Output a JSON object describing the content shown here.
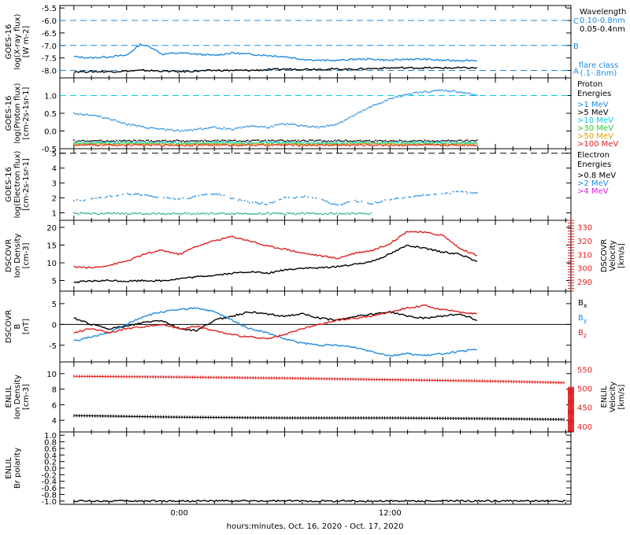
{
  "chart_data": [
    {
      "type": "line",
      "ylabel_lines": [
        "GOES-16",
        "log(X-ray flux)",
        "[W m-2]"
      ],
      "ylim": [
        -8.3,
        -5.4
      ],
      "yticks": [
        "-5.5",
        "-6.0",
        "-6.5",
        "-7.0",
        "-7.5",
        "-8.0"
      ],
      "ytick_values": [
        -5.5,
        -6.0,
        -6.5,
        -7.0,
        -7.5,
        -8.0
      ],
      "legend_title": "Wavelength",
      "legend": [
        {
          "label": "0.10-0.8nm",
          "color": "#1f8ae0"
        },
        {
          "label": "0.05-0.4nm",
          "color": "#000000"
        }
      ],
      "flare_classes": [
        {
          "label": "C",
          "level": -6.0
        },
        {
          "label": "B",
          "level": -7.0
        },
        {
          "label": "A",
          "level": -8.0
        }
      ],
      "flare_caption": [
        "flare class",
        "(.1-.8nm)"
      ],
      "series": [
        {
          "color": "#1f8ae0",
          "x": [
            -6,
            -5,
            -4,
            -3,
            -2.2,
            -1.5,
            -1,
            0,
            1,
            2,
            3,
            4,
            5,
            6,
            7,
            8,
            9,
            10,
            11,
            12,
            13,
            14,
            15,
            16,
            17
          ],
          "y": [
            -7.45,
            -7.5,
            -7.45,
            -7.4,
            -6.95,
            -7.1,
            -7.35,
            -7.3,
            -7.35,
            -7.4,
            -7.3,
            -7.35,
            -7.4,
            -7.45,
            -7.55,
            -7.6,
            -7.6,
            -7.55,
            -7.55,
            -7.6,
            -7.55,
            -7.55,
            -7.6,
            -7.6,
            -7.6
          ]
        },
        {
          "color": "#000000",
          "x": [
            -6,
            -4,
            -2,
            0,
            2,
            4,
            6,
            8,
            10,
            12,
            14,
            17
          ],
          "y": [
            -8.05,
            -8.05,
            -8.0,
            -8.05,
            -8.0,
            -8.0,
            -7.95,
            -7.95,
            -7.95,
            -7.9,
            -7.9,
            -7.9
          ]
        }
      ]
    },
    {
      "type": "scatter",
      "ylabel_lines": [
        "GOES-16",
        "log(Proton flux)",
        "[cm-2s-1sr-1]"
      ],
      "ylim": [
        -0.5,
        1.5
      ],
      "yticks": [
        "1.0",
        "0.5",
        "0.0",
        "-0.5"
      ],
      "ytick_values": [
        1.0,
        0.5,
        0.0,
        -0.5
      ],
      "threshold": 1.0,
      "legend_title_lines": [
        "Proton",
        "Energies"
      ],
      "legend": [
        {
          "label": ">1 MeV",
          "color": "#1f8ae0"
        },
        {
          "label": ">5 MeV",
          "color": "#000000"
        },
        {
          "label": ">10 MeV",
          "color": "#00d0e0"
        },
        {
          "label": ">30 MeV",
          "color": "#33cc33"
        },
        {
          "label": ">50 MeV",
          "color": "#e0a000"
        },
        {
          "label": ">100 MeV",
          "color": "#e02020"
        }
      ],
      "series": [
        {
          "color": "#1f8ae0",
          "x": [
            -6,
            -5,
            -4,
            -3,
            -2,
            -1,
            0,
            1,
            2,
            3,
            4,
            5,
            6,
            7,
            8,
            9,
            10,
            11,
            12,
            13,
            14,
            15,
            16,
            17
          ],
          "y": [
            0.5,
            0.45,
            0.35,
            0.2,
            0.1,
            0.05,
            0.0,
            0.05,
            0.1,
            0.05,
            0.15,
            0.1,
            0.2,
            0.15,
            0.1,
            0.2,
            0.45,
            0.7,
            0.9,
            1.05,
            1.1,
            1.15,
            1.1,
            1.0
          ]
        },
        {
          "color": "#000000",
          "x": [
            -6,
            17
          ],
          "y": [
            -0.28,
            -0.28
          ]
        },
        {
          "color": "#00d0e0",
          "x": [
            -6,
            17
          ],
          "y": [
            -0.33,
            -0.33
          ]
        },
        {
          "color": "#33cc33",
          "x": [
            -6,
            17
          ],
          "y": [
            -0.36,
            -0.36
          ]
        },
        {
          "color": "#e0a000",
          "x": [
            -6,
            17
          ],
          "y": [
            -0.38,
            -0.38
          ]
        },
        {
          "color": "#e02020",
          "x": [
            -6,
            17
          ],
          "y": [
            -0.4,
            -0.4
          ]
        }
      ]
    },
    {
      "type": "scatter",
      "ylabel_lines": [
        "GOES-16",
        "log(Electron flux)",
        "[cm-2s-1sr-1]"
      ],
      "ylim": [
        0.5,
        5.3
      ],
      "yticks": [
        "5",
        "4",
        "3",
        "2",
        "1"
      ],
      "ytick_values": [
        5,
        4,
        3,
        2,
        1
      ],
      "threshold": 5.0,
      "legend_title_lines": [
        "Electron",
        "Energies"
      ],
      "legend": [
        {
          "label": ">0.8 MeV",
          "color": "#000000"
        },
        {
          "label": ">2 MeV",
          "color": "#1f8ae0"
        },
        {
          "label": ">4 MeV",
          "color": "#e020e0"
        }
      ],
      "series": [
        {
          "color": "#1f8ae0",
          "x": [
            -6,
            -5,
            -4,
            -3,
            -2,
            -1,
            0,
            1,
            2,
            3,
            4,
            5,
            6,
            7,
            8,
            9,
            10,
            11,
            12,
            13,
            14,
            15,
            16,
            17
          ],
          "y": [
            1.8,
            1.9,
            2.1,
            2.3,
            2.2,
            2.0,
            1.9,
            2.1,
            2.3,
            2.0,
            1.7,
            1.6,
            2.0,
            2.1,
            1.9,
            1.5,
            1.8,
            1.6,
            1.9,
            2.0,
            2.2,
            2.3,
            2.4,
            2.3
          ]
        },
        {
          "color": "#1faa88",
          "x": [
            -6,
            11
          ],
          "y": [
            0.95,
            0.95
          ]
        }
      ]
    },
    {
      "type": "line",
      "ylabel_lines": [
        "DSCOVR",
        "Ion Density",
        "[cm-3]"
      ],
      "ylim": [
        2,
        22
      ],
      "yticks": [
        "20",
        "15",
        "10",
        "5"
      ],
      "ytick_values": [
        20,
        15,
        10,
        5
      ],
      "y2label_lines": [
        "DSCOVR",
        "Velocity",
        "[km/s]"
      ],
      "y2lim": [
        283,
        335
      ],
      "y2ticks": [
        "330",
        "320",
        "310",
        "300",
        "290"
      ],
      "y2tick_values": [
        330,
        320,
        310,
        300,
        290
      ],
      "series": [
        {
          "color": "#000000",
          "axis": "left",
          "x": [
            -6,
            -5,
            -4,
            -3,
            -2,
            -1,
            0,
            1,
            2,
            3,
            4,
            5,
            6,
            7,
            8,
            9,
            10,
            11,
            12,
            13,
            14,
            15,
            16,
            17
          ],
          "y": [
            4.5,
            4.8,
            5.0,
            4.8,
            5.0,
            4.9,
            5.5,
            6.0,
            6.5,
            7.0,
            7.5,
            7.0,
            8.0,
            8.5,
            8.5,
            9.0,
            9.5,
            10.5,
            12.5,
            15.0,
            14.0,
            13.0,
            12.5,
            10.0
          ]
        },
        {
          "color": "#e02020",
          "axis": "right",
          "x": [
            -6,
            -5,
            -4,
            -3,
            -2,
            -1,
            0,
            1,
            2,
            3,
            4,
            5,
            6,
            7,
            8,
            9,
            10,
            11,
            12,
            13,
            14,
            15,
            16,
            17
          ],
          "y": [
            301,
            300,
            302,
            305,
            310,
            313,
            310,
            316,
            320,
            323,
            320,
            316,
            314,
            311,
            309,
            307,
            311,
            313,
            318,
            327,
            326,
            324,
            314,
            309
          ]
        }
      ]
    },
    {
      "type": "line",
      "ylabel_lines": [
        "DSCOVR",
        "B",
        "[nT]"
      ],
      "ylim": [
        -9,
        8
      ],
      "yticks": [
        "5",
        "0",
        "-5"
      ],
      "ytick_values": [
        5,
        0,
        -5
      ],
      "zero_line": 0,
      "legend": [
        {
          "label": "Bx",
          "color": "#000000"
        },
        {
          "label": "By",
          "color": "#1f8ae0"
        },
        {
          "label": "Bz",
          "color": "#e02020"
        }
      ],
      "series": [
        {
          "color": "#000000",
          "x": [
            -6,
            -5,
            -4,
            -3,
            -2,
            -1,
            0,
            1,
            2,
            3,
            4,
            5,
            6,
            7,
            8,
            9,
            10,
            11,
            12,
            13,
            14,
            15,
            16,
            17
          ],
          "y": [
            1.5,
            0.0,
            -1.0,
            -0.5,
            0.5,
            1.0,
            -1.0,
            -1.5,
            1.0,
            2.0,
            3.0,
            2.5,
            2.0,
            2.5,
            1.5,
            1.0,
            2.0,
            2.5,
            3.0,
            2.0,
            1.5,
            2.0,
            2.5,
            1.0
          ]
        },
        {
          "color": "#1f8ae0",
          "x": [
            -6,
            -5,
            -4,
            -3,
            -2,
            -1,
            0,
            1,
            2,
            3,
            4,
            5,
            6,
            7,
            8,
            9,
            10,
            11,
            12,
            13,
            14,
            15,
            16,
            17
          ],
          "y": [
            -4.0,
            -3.0,
            -2.0,
            0.0,
            2.0,
            3.0,
            3.5,
            4.0,
            3.0,
            1.0,
            -1.0,
            -2.0,
            -3.5,
            -4.5,
            -5.0,
            -5.0,
            -5.5,
            -6.5,
            -7.5,
            -7.0,
            -7.5,
            -7.0,
            -6.5,
            -6.0
          ]
        },
        {
          "color": "#e02020",
          "x": [
            -6,
            -5,
            -4,
            -3,
            -2,
            -1,
            0,
            1,
            2,
            3,
            4,
            5,
            6,
            7,
            8,
            9,
            10,
            11,
            12,
            13,
            14,
            15,
            16,
            17
          ],
          "y": [
            -2.0,
            -1.0,
            -2.0,
            -1.0,
            -0.5,
            0.0,
            -1.0,
            -0.5,
            -1.5,
            -2.5,
            -3.0,
            -3.5,
            -2.5,
            -1.0,
            0.0,
            1.0,
            1.5,
            2.0,
            3.0,
            4.0,
            4.5,
            3.5,
            3.0,
            2.5
          ]
        }
      ]
    },
    {
      "type": "line",
      "ylabel_lines": [
        "ENLIL",
        "Ion Density",
        "[cm-3]"
      ],
      "ylim": [
        2.5,
        11.5
      ],
      "yticks": [
        "10",
        "8",
        "6",
        "4"
      ],
      "ytick_values": [
        10,
        8,
        6,
        4
      ],
      "y2label_lines": [
        "ENLIL",
        "Velocity",
        "[km/s]"
      ],
      "y2lim": [
        385,
        570
      ],
      "y2ticks": [
        "550",
        "500",
        "450",
        "400"
      ],
      "y2tick_values": [
        550,
        500,
        450,
        400
      ],
      "series": [
        {
          "color": "#000000",
          "axis": "left",
          "x": [
            -6,
            0,
            6,
            12,
            18,
            22
          ],
          "y": [
            4.6,
            4.4,
            4.3,
            4.3,
            4.2,
            4.1
          ]
        },
        {
          "color": "#e02020",
          "axis": "right",
          "x": [
            -6,
            0,
            6,
            12,
            18,
            22
          ],
          "y": [
            532,
            530,
            527,
            523,
            519,
            515
          ]
        }
      ]
    },
    {
      "type": "line",
      "ylabel_lines": [
        "ENLIL",
        "Br polarity"
      ],
      "ylim": [
        -1.1,
        1.1
      ],
      "yticks": [
        "1.0",
        "0.8",
        "0.6",
        "0.4",
        "0.2",
        "0.0",
        "-0.2",
        "-0.4",
        "-0.6",
        "-0.8",
        "-1.0"
      ],
      "ytick_values": [
        1.0,
        0.8,
        0.6,
        0.4,
        0.2,
        0.0,
        -0.2,
        -0.4,
        -0.6,
        -0.8,
        -1.0
      ],
      "series": [
        {
          "color": "#000000",
          "x": [
            -6,
            22
          ],
          "y": [
            -1.0,
            -1.0
          ]
        }
      ]
    }
  ],
  "xaxis": {
    "range": [
      -6.8,
      22.3
    ],
    "ticks": [
      {
        "value": 0,
        "label": "0:00"
      },
      {
        "value": 12,
        "label": "12:00"
      }
    ],
    "label": "hours:minutes, Oct. 16, 2020 - Oct. 17, 2020"
  }
}
